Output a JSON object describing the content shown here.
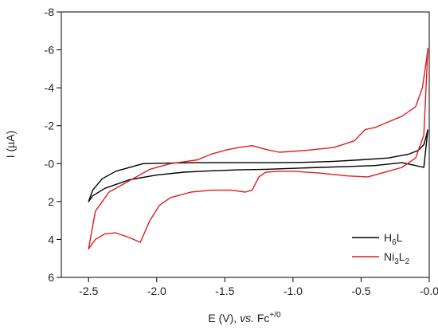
{
  "chart_data": {
    "type": "line",
    "xlabel": {
      "main": "E (V), ",
      "italic": "vs.",
      "ref": " Fc",
      "superscript": "+/0"
    },
    "ylabel": "I (µA)",
    "xlim": [
      -2.7,
      0.0
    ],
    "ylim": [
      -8,
      6
    ],
    "y_axis_inverted": true,
    "x_ticks": [
      -2.5,
      -2.0,
      -1.5,
      -1.0,
      -0.5,
      -0.0
    ],
    "x_tick_labels": [
      "-2.5",
      "-2.0",
      "-1.5",
      "-1.0",
      "-0.5",
      "-0.0"
    ],
    "y_ticks": [
      -8,
      -6,
      -4,
      -2,
      0,
      2,
      4,
      6
    ],
    "y_tick_labels": [
      "-8",
      "-6",
      "-4",
      "-2",
      "-0",
      "2",
      "4",
      "6"
    ],
    "grid": false,
    "legend_position": "bottom-right",
    "series": [
      {
        "name": "H6L",
        "name_parts": {
          "base": "H",
          "sub1": "6",
          "after": "L",
          "sub2": ""
        },
        "color": "#000000",
        "points": [
          [
            -0.01,
            -1.8
          ],
          [
            -0.02,
            -1.5
          ],
          [
            -0.04,
            -1.0
          ],
          [
            -0.08,
            -0.7
          ],
          [
            -0.15,
            -0.5
          ],
          [
            -0.3,
            -0.3
          ],
          [
            -0.5,
            -0.2
          ],
          [
            -0.7,
            -0.12
          ],
          [
            -0.9,
            -0.07
          ],
          [
            -1.1,
            -0.05
          ],
          [
            -1.3,
            -0.05
          ],
          [
            -1.5,
            -0.05
          ],
          [
            -1.7,
            -0.05
          ],
          [
            -1.9,
            -0.03
          ],
          [
            -2.1,
            0.0
          ],
          [
            -2.3,
            0.4
          ],
          [
            -2.4,
            0.8
          ],
          [
            -2.47,
            1.4
          ],
          [
            -2.5,
            2.0
          ],
          [
            -2.47,
            1.7
          ],
          [
            -2.38,
            1.3
          ],
          [
            -2.2,
            0.85
          ],
          [
            -2.0,
            0.6
          ],
          [
            -1.8,
            0.45
          ],
          [
            -1.6,
            0.38
          ],
          [
            -1.4,
            0.33
          ],
          [
            -1.2,
            0.3
          ],
          [
            -1.0,
            0.25
          ],
          [
            -0.8,
            0.2
          ],
          [
            -0.6,
            0.15
          ],
          [
            -0.4,
            0.1
          ],
          [
            -0.2,
            -0.05
          ],
          [
            -0.1,
            0.1
          ],
          [
            -0.04,
            0.2
          ],
          [
            -0.01,
            -1.8
          ]
        ]
      },
      {
        "name": "Ni3L2",
        "name_parts": {
          "base": "Ni",
          "sub1": "3",
          "after": "L",
          "sub2": "2"
        },
        "color": "#e41a1c",
        "points": [
          [
            -0.01,
            -6.1
          ],
          [
            -0.02,
            -5.5
          ],
          [
            -0.05,
            -4.0
          ],
          [
            -0.1,
            -3.0
          ],
          [
            -0.2,
            -2.5
          ],
          [
            -0.3,
            -2.2
          ],
          [
            -0.4,
            -1.9
          ],
          [
            -0.47,
            -1.8
          ],
          [
            -0.55,
            -1.2
          ],
          [
            -0.7,
            -0.85
          ],
          [
            -0.9,
            -0.7
          ],
          [
            -1.1,
            -0.6
          ],
          [
            -1.2,
            -0.75
          ],
          [
            -1.3,
            -0.95
          ],
          [
            -1.4,
            -0.85
          ],
          [
            -1.5,
            -0.7
          ],
          [
            -1.6,
            -0.5
          ],
          [
            -1.7,
            -0.2
          ],
          [
            -1.8,
            -0.1
          ],
          [
            -1.9,
            0.0
          ],
          [
            -2.05,
            0.3
          ],
          [
            -2.2,
            0.9
          ],
          [
            -2.35,
            1.5
          ],
          [
            -2.45,
            2.5
          ],
          [
            -2.5,
            4.5
          ],
          [
            -2.45,
            4.0
          ],
          [
            -2.38,
            3.7
          ],
          [
            -2.3,
            3.65
          ],
          [
            -2.2,
            3.9
          ],
          [
            -2.12,
            4.15
          ],
          [
            -2.05,
            3.0
          ],
          [
            -1.98,
            2.2
          ],
          [
            -1.9,
            1.8
          ],
          [
            -1.75,
            1.5
          ],
          [
            -1.6,
            1.4
          ],
          [
            -1.45,
            1.4
          ],
          [
            -1.35,
            1.5
          ],
          [
            -1.3,
            1.4
          ],
          [
            -1.25,
            0.7
          ],
          [
            -1.2,
            0.45
          ],
          [
            -1.1,
            0.4
          ],
          [
            -1.0,
            0.4
          ],
          [
            -0.8,
            0.5
          ],
          [
            -0.6,
            0.65
          ],
          [
            -0.45,
            0.7
          ],
          [
            -0.3,
            0.4
          ],
          [
            -0.2,
            0.2
          ],
          [
            -0.1,
            -0.3
          ],
          [
            -0.04,
            -1.5
          ],
          [
            -0.01,
            -6.1
          ]
        ]
      }
    ]
  }
}
